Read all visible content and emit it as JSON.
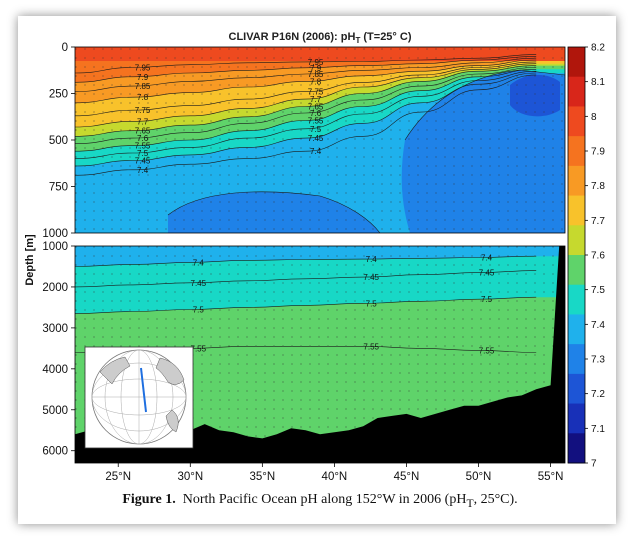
{
  "caption": {
    "figure_label": "Figure 1.",
    "text": "North Pacific Ocean pH along 152°W in 2006 (pH",
    "subscript": "T",
    "text_end": ", 25°C)."
  },
  "chart_data": {
    "type": "heatmap",
    "title": "CLIVAR P16N (2006): pH",
    "title_subscript": "T",
    "title_suffix": " (T=25° C)",
    "ylabel": "Depth [m]",
    "x_ticks": [
      "25°N",
      "30°N",
      "35°N",
      "40°N",
      "45°N",
      "50°N",
      "55°N"
    ],
    "x_tick_values": [
      25,
      30,
      35,
      40,
      45,
      50,
      55
    ],
    "x_range": [
      22,
      56
    ],
    "upper_panel": {
      "y_ticks": [
        "0",
        "250",
        "500",
        "750",
        "1000"
      ],
      "y_tick_values": [
        0,
        250,
        500,
        750,
        1000
      ],
      "ylim": [
        0,
        1000
      ]
    },
    "lower_panel": {
      "y_ticks": [
        "1000",
        "2000",
        "3000",
        "4000",
        "5000",
        "6000"
      ],
      "y_tick_values": [
        1000,
        2000,
        3000,
        4000,
        5000,
        6000
      ],
      "ylim": [
        1000,
        6300
      ]
    },
    "colorbar": {
      "ticks": [
        "8.2",
        "8.1",
        "8",
        "7.9",
        "7.8",
        "7.7",
        "7.6",
        "7.5",
        "7.4",
        "7.3",
        "7.2",
        "7.1",
        "7"
      ],
      "values": [
        8.2,
        8.1,
        8.0,
        7.9,
        7.8,
        7.7,
        7.6,
        7.5,
        7.4,
        7.3,
        7.2,
        7.1,
        7.0
      ],
      "colors": [
        "#b0160c",
        "#d8261a",
        "#ee4a1f",
        "#f5731f",
        "#f89a24",
        "#f8c22b",
        "#c6d92e",
        "#5fd36a",
        "#18d8c6",
        "#1fb1ec",
        "#1f82e8",
        "#1d55d6",
        "#1830b8",
        "#12107f"
      ]
    },
    "upper_contours": [
      {
        "label": "7.95",
        "depth": [
          140,
          110,
          95,
          85,
          80,
          78,
          70,
          60,
          40
        ]
      },
      {
        "label": "7.9",
        "depth": [
          190,
          160,
          140,
          125,
          112,
          100,
          90,
          70,
          50
        ]
      },
      {
        "label": "7.85",
        "depth": [
          240,
          210,
          185,
          165,
          145,
          125,
          110,
          85,
          60
        ]
      },
      {
        "label": "7.8",
        "depth": [
          300,
          270,
          245,
          215,
          185,
          155,
          130,
          100,
          70
        ]
      },
      {
        "label": "7.75",
        "depth": [
          370,
          340,
          315,
          280,
          240,
          190,
          150,
          110,
          80
        ]
      },
      {
        "label": "7.7",
        "depth": [
          430,
          400,
          370,
          330,
          280,
          215,
          165,
          120,
          90
        ]
      },
      {
        "label": "7.65",
        "depth": [
          480,
          450,
          420,
          375,
          320,
          250,
          185,
          130,
          100
        ]
      },
      {
        "label": "7.6",
        "depth": [
          520,
          490,
          460,
          410,
          355,
          285,
          210,
          145,
          110
        ]
      },
      {
        "label": "7.55",
        "depth": [
          560,
          530,
          500,
          450,
          395,
          320,
          235,
          160,
          120
        ]
      },
      {
        "label": "7.5",
        "depth": [
          600,
          570,
          540,
          490,
          440,
          360,
          265,
          180,
          130
        ]
      },
      {
        "label": "7.45",
        "depth": [
          640,
          610,
          580,
          540,
          490,
          410,
          300,
          200,
          140
        ]
      },
      {
        "label": "7.4",
        "depth": [
          690,
          660,
          630,
          600,
          560,
          480,
          350,
          230,
          150
        ]
      }
    ],
    "upper_contour_x": [
      22,
      26,
      30,
      34,
      38,
      42,
      46,
      50,
      54
    ],
    "lower_contours": [
      {
        "label": "7.4",
        "depth": [
          1500,
          1450,
          1400,
          1350,
          1330,
          1320,
          1300,
          1280,
          1250
        ]
      },
      {
        "label": "7.45",
        "depth": [
          2000,
          1950,
          1900,
          1850,
          1800,
          1760,
          1700,
          1650,
          1600
        ]
      },
      {
        "label": "7.5",
        "depth": [
          2650,
          2600,
          2550,
          2500,
          2450,
          2400,
          2350,
          2300,
          2250
        ]
      },
      {
        "label": "7.55",
        "depth": [
          3600,
          3550,
          3500,
          3450,
          3450,
          3450,
          3500,
          3550,
          3600
        ]
      }
    ],
    "lower_contour_x": [
      22,
      26,
      30,
      34,
      38,
      42,
      46,
      50,
      54
    ],
    "bathymetry": {
      "x": [
        22,
        23,
        24,
        25,
        26,
        27,
        28,
        29,
        30,
        31,
        32,
        33,
        34,
        35,
        36,
        37,
        38,
        39,
        40,
        41,
        42,
        43,
        44,
        45,
        46,
        47,
        48,
        49,
        50,
        51,
        52,
        53,
        54,
        55,
        55.6,
        56
      ],
      "depth": [
        5600,
        5500,
        5450,
        5350,
        5400,
        5500,
        5500,
        5450,
        5500,
        5350,
        5500,
        5550,
        5650,
        5700,
        5600,
        5450,
        5500,
        5600,
        5550,
        5500,
        5400,
        5200,
        5150,
        5100,
        5200,
        5100,
        5000,
        4900,
        4900,
        4800,
        4700,
        4650,
        4500,
        4400,
        1000,
        1000
      ]
    }
  }
}
